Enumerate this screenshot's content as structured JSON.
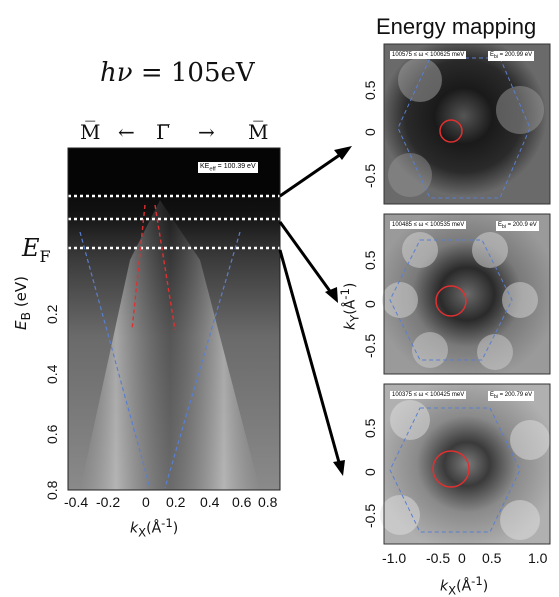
{
  "header": {
    "photon_energy_symbol": "hν",
    "photon_energy_value": " = 105eV",
    "energy_mapping_title": "Energy mapping"
  },
  "band_plot": {
    "kpath": [
      "M̅",
      "←",
      "Γ̅",
      "→",
      "M̅"
    ],
    "ke_label": "KE",
    "ke_sub": "eff",
    "ke_value": " = 100.39  eV",
    "ef_main": "E",
    "ef_sub": "F",
    "ylabel_main": "E",
    "ylabel_sub": "B",
    "ylabel_unit": " (eV)",
    "y_ticks": [
      "0.2",
      "0.4",
      "0.6",
      "0.8"
    ],
    "x_ticks": [
      "-0.4",
      "-0.2",
      "0",
      "0.2",
      "0.4",
      "0.6",
      "0.8"
    ],
    "xlabel_main": "k",
    "xlabel_sub": "X",
    "xlabel_unit": "(Å",
    "xlabel_exp": "-1",
    "xlabel_close": ")"
  },
  "maps": [
    {
      "label": "100575 ≤ ω < 100625  meV",
      "e_label": "E",
      "e_sub": "bi",
      "e_value": " = 200.99 eV"
    },
    {
      "label": "100485 ≤ ω < 100535  meV",
      "e_label": "E",
      "e_sub": "bi",
      "e_value": " = 200.9 eV"
    },
    {
      "label": "100375 ≤ ω < 100425  meV",
      "e_label": "E",
      "e_sub": "bi",
      "e_value": " = 200.79 eV"
    }
  ],
  "map_axes": {
    "y_ticks": [
      "0.5",
      "0",
      "-0.5"
    ],
    "x_ticks": [
      "-1.0",
      "-0.5",
      "0",
      "0.5",
      "1.0"
    ],
    "ylabel_main": "k",
    "ylabel_sub": "Y",
    "ylabel_unit": "(Å",
    "ylabel_exp": "-1",
    "ylabel_close": ")",
    "xlabel_main": "k",
    "xlabel_sub": "X",
    "xlabel_unit": "(Å",
    "xlabel_exp": "-1",
    "xlabel_close": ")"
  },
  "colors": {
    "red_circle": "#e03030",
    "blue_dash": "#5a7fd0",
    "white_dash": "#ffffff"
  }
}
